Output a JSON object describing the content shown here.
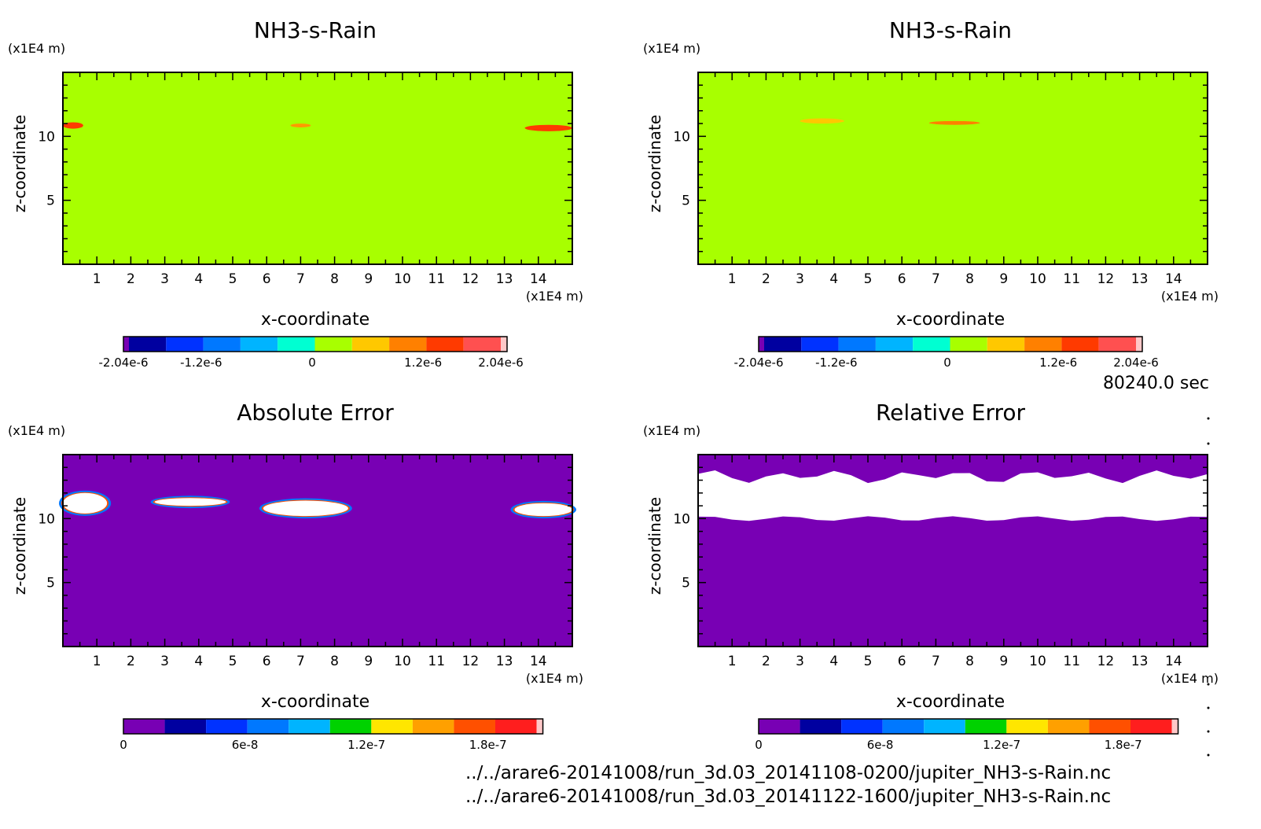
{
  "chart_data": [
    {
      "type": "heatmap",
      "title": "NH3-s-Rain",
      "xlabel": "x-coordinate",
      "ylabel": "z-coordinate",
      "x_unit": "(x1E4 m)",
      "y_unit": "(x1E4 m)",
      "xlim": [
        0,
        15
      ],
      "ylim": [
        0,
        15
      ],
      "x_ticks": [
        "1",
        "2",
        "3",
        "4",
        "5",
        "6",
        "7",
        "8",
        "9",
        "10",
        "11",
        "12",
        "13",
        "14"
      ],
      "y_ticks": [
        "5",
        "10"
      ],
      "background": "#a8ff00",
      "features": [
        {
          "x": [
            0,
            0.6
          ],
          "z": [
            10.6,
            11.1
          ],
          "color": "#ff3a00",
          "label": "max"
        },
        {
          "x": [
            6.7,
            7.3
          ],
          "z": [
            10.7,
            11.0
          ],
          "color": "#ff9a00",
          "label": "mid"
        },
        {
          "x": [
            13.6,
            15
          ],
          "z": [
            10.4,
            10.9
          ],
          "color": "#ff3a00",
          "label": "max"
        }
      ],
      "colorbar": {
        "colors": [
          "#7800b4",
          "#0000a0",
          "#0032ff",
          "#0078ff",
          "#00b4ff",
          "#00ffd2",
          "#a8ff00",
          "#ffc800",
          "#ff8000",
          "#ff3a00",
          "#ff5050",
          "#ffc8c8"
        ],
        "tick_labels": [
          "-2.04e-6",
          "-1.2e-6",
          "0",
          "1.2e-6",
          "2.04e-6"
        ],
        "tick_values": [
          -2.04e-06,
          -1.2e-06,
          0,
          1.2e-06,
          2.04e-06
        ],
        "range": [
          -2.04e-06,
          2.04e-06
        ]
      }
    },
    {
      "type": "heatmap",
      "title": "NH3-s-Rain",
      "xlabel": "x-coordinate",
      "ylabel": "z-coordinate",
      "x_unit": "(x1E4 m)",
      "y_unit": "(x1E4 m)",
      "xlim": [
        0,
        15
      ],
      "ylim": [
        0,
        15
      ],
      "x_ticks": [
        "1",
        "2",
        "3",
        "4",
        "5",
        "6",
        "7",
        "8",
        "9",
        "10",
        "11",
        "12",
        "13",
        "14"
      ],
      "y_ticks": [
        "5",
        "10"
      ],
      "background": "#a8ff00",
      "features": [
        {
          "x": [
            3.0,
            4.3
          ],
          "z": [
            11.0,
            11.4
          ],
          "color": "#ffc800",
          "label": "mid"
        },
        {
          "x": [
            6.8,
            8.3
          ],
          "z": [
            10.9,
            11.2
          ],
          "color": "#ff8000",
          "label": "mid"
        }
      ],
      "colorbar": {
        "colors": [
          "#7800b4",
          "#0000a0",
          "#0032ff",
          "#0078ff",
          "#00b4ff",
          "#00ffd2",
          "#a8ff00",
          "#ffc800",
          "#ff8000",
          "#ff3a00",
          "#ff5050",
          "#ffc8c8"
        ],
        "tick_labels": [
          "-2.04e-6",
          "-1.2e-6",
          "0",
          "1.2e-6",
          "2.04e-6"
        ],
        "tick_values": [
          -2.04e-06,
          -1.2e-06,
          0,
          1.2e-06,
          2.04e-06
        ],
        "range": [
          -2.04e-06,
          2.04e-06
        ]
      }
    },
    {
      "type": "heatmap",
      "title": "Absolute Error",
      "xlabel": "x-coordinate",
      "ylabel": "z-coordinate",
      "x_unit": "(x1E4 m)",
      "y_unit": "(x1E4 m)",
      "xlim": [
        0,
        15
      ],
      "ylim": [
        0,
        15
      ],
      "x_ticks": [
        "1",
        "2",
        "3",
        "4",
        "5",
        "6",
        "7",
        "8",
        "9",
        "10",
        "11",
        "12",
        "13",
        "14"
      ],
      "y_ticks": [
        "5",
        "10"
      ],
      "background": "#7800b4",
      "features": [
        {
          "x": [
            0,
            1.3
          ],
          "z": [
            10.4,
            12.0
          ],
          "color": "#ffffff",
          "label": "max"
        },
        {
          "x": [
            2.7,
            4.8
          ],
          "z": [
            11.0,
            11.6
          ],
          "color": "#ffffff",
          "label": "max"
        },
        {
          "x": [
            5.9,
            8.4
          ],
          "z": [
            10.2,
            11.4
          ],
          "color": "#ffffff",
          "label": "max"
        },
        {
          "x": [
            13.3,
            15
          ],
          "z": [
            10.2,
            11.2
          ],
          "color": "#ffffff",
          "label": "max"
        }
      ],
      "colorbar": {
        "colors": [
          "#7800b4",
          "#0000a0",
          "#0032ff",
          "#0078ff",
          "#00b4ff",
          "#00d200",
          "#ffe600",
          "#ffa000",
          "#ff5000",
          "#ff1e1e",
          "#ffc8c8"
        ],
        "tick_labels": [
          "0",
          "6e-8",
          "1.2e-7",
          "1.8e-7"
        ],
        "tick_values": [
          0,
          6e-08,
          1.2e-07,
          1.8e-07
        ],
        "range": [
          0,
          2.04e-07
        ]
      }
    },
    {
      "type": "heatmap",
      "title": "Relative Error",
      "xlabel": "x-coordinate",
      "ylabel": "z-coordinate",
      "x_unit": "(x1E4 m)",
      "y_unit": "(x1E4 m)",
      "xlim": [
        0,
        15
      ],
      "ylim": [
        0,
        15
      ],
      "x_ticks": [
        "1",
        "2",
        "3",
        "4",
        "5",
        "6",
        "7",
        "8",
        "9",
        "10",
        "11",
        "12",
        "13",
        "14"
      ],
      "y_ticks": [
        "5",
        "10"
      ],
      "background": "#7800b4",
      "features": [
        {
          "x": [
            0,
            15
          ],
          "z": [
            10.0,
            13.3
          ],
          "color": "#ffffff",
          "label": "band"
        }
      ],
      "colorbar": {
        "colors": [
          "#7800b4",
          "#0000a0",
          "#0032ff",
          "#0078ff",
          "#00b4ff",
          "#00d200",
          "#ffe600",
          "#ffa000",
          "#ff5000",
          "#ff1e1e",
          "#ffc8c8"
        ],
        "tick_labels": [
          "0",
          "6e-8",
          "1.2e-7",
          "1.8e-7"
        ],
        "tick_values": [
          0,
          6e-08,
          1.2e-07,
          1.8e-07
        ],
        "range": [
          0,
          2.04e-07
        ]
      }
    }
  ],
  "time_label": "80240.0 sec",
  "file_paths": [
    "../../arare6-20141008/run_3d.03_20141108-0200/jupiter_NH3-s-Rain.nc",
    "../../arare6-20141008/run_3d.03_20141122-1600/jupiter_NH3-s-Rain.nc"
  ]
}
